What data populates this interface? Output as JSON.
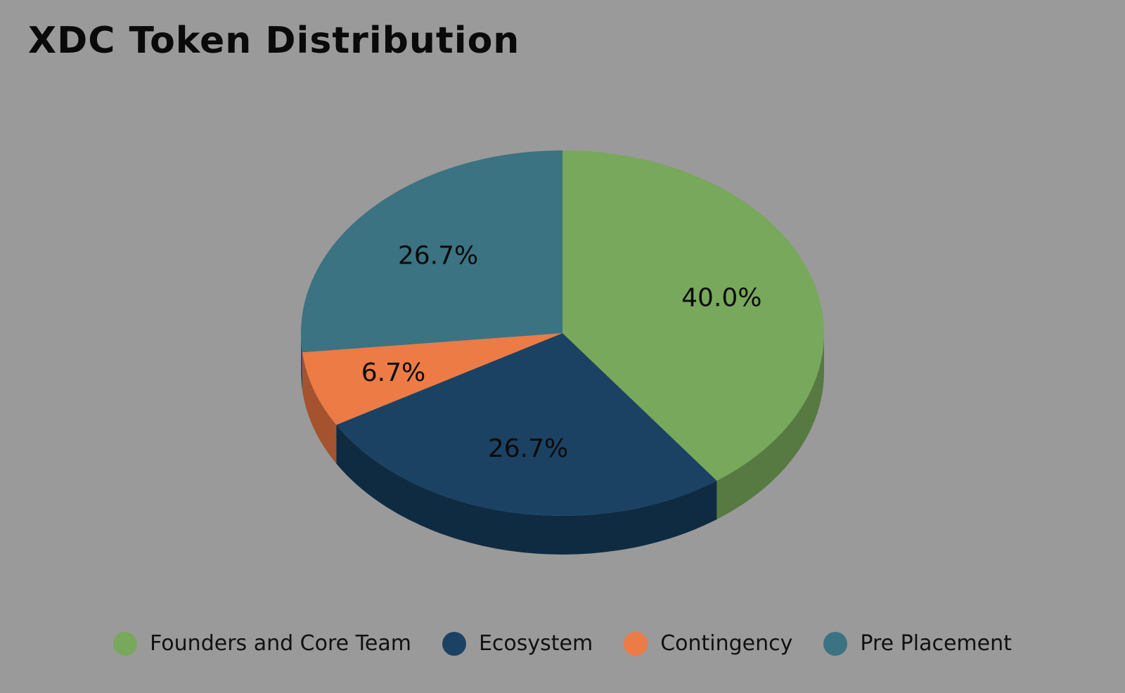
{
  "title": "XDC Token Distribution",
  "chart_data": {
    "type": "pie",
    "title": "XDC Token Distribution",
    "three_d": true,
    "legend_position": "bottom",
    "slices": [
      {
        "label": "Founders and Core Team",
        "value": 40.0,
        "value_label": "40.0%",
        "color": "#78a85b",
        "side_color": "#567a41"
      },
      {
        "label": "Ecosystem",
        "value": 26.7,
        "value_label": "26.7%",
        "color": "#1b4262",
        "side_color": "#0f2b42"
      },
      {
        "label": "Contingency",
        "value": 6.7,
        "value_label": "6.7%",
        "color": "#ec7b45",
        "side_color": "#a4532e"
      },
      {
        "label": "Pre Placement",
        "value": 26.7,
        "value_label": "26.7%",
        "color": "#3b7382",
        "side_color": "#2a5360"
      }
    ]
  }
}
